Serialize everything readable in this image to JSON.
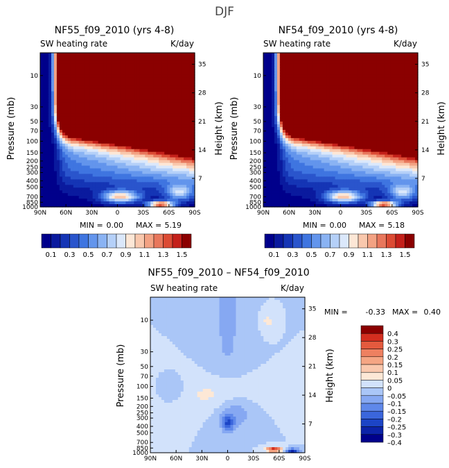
{
  "figure": {
    "title": "DJF"
  },
  "colors": {
    "top_palette": [
      "#00008b",
      "#0a1a9e",
      "#1535b5",
      "#2a55cc",
      "#3f75e0",
      "#6395ec",
      "#8ab3f3",
      "#b5d0f8",
      "#dbe8fb",
      "#fde7d6",
      "#f9c8ad",
      "#f3a283",
      "#e8775c",
      "#dc4b34",
      "#c4201a",
      "#8b0000"
    ],
    "diff_palette": [
      "#00008b",
      "#0c23a8",
      "#1c45c6",
      "#3b66dc",
      "#5f88ea",
      "#86a8f2",
      "#aac6f7",
      "#d2e2fb",
      "#fde8d6",
      "#fac8ad",
      "#f5a583",
      "#ee8060",
      "#e45a3e",
      "#d32e1f",
      "#8b0000"
    ]
  },
  "chart_data": [
    {
      "type": "heatmap",
      "panel": "left",
      "title": "NF55_f09_2010 (yrs 4-8)",
      "left_label": "SW heating rate",
      "right_label": "K/day",
      "ylabel": "Pressure (mb)",
      "ylabel_right": "Height (km)",
      "x_ticks": [
        "90N",
        "60N",
        "30N",
        "0",
        "30S",
        "60S",
        "90S"
      ],
      "p_ticks": [
        "10",
        "30",
        "50",
        "70",
        "100",
        "150",
        "200",
        "250",
        "300",
        "400",
        "500",
        "700",
        "850",
        "1000"
      ],
      "p_tick_values": [
        10,
        30,
        50,
        70,
        100,
        150,
        200,
        250,
        300,
        400,
        500,
        700,
        850,
        1000
      ],
      "h_ticks": [
        "35",
        "28",
        "21",
        "14",
        "7"
      ],
      "h_tick_values": [
        35,
        28,
        21,
        14,
        7
      ],
      "ylim_mb": [
        1000,
        4.5
      ],
      "min_label": "MIN =",
      "min_value": "0.00",
      "max_label": "MAX =",
      "max_value": "5.19",
      "colorbar": {
        "levels": [
          0.1,
          0.2,
          0.3,
          0.4,
          0.5,
          0.6,
          0.7,
          0.8,
          0.9,
          1.0,
          1.1,
          1.2,
          1.3,
          1.4,
          1.5
        ],
        "tick_labels": [
          "0.1",
          "0.3",
          "0.5",
          "0.7",
          "0.9",
          "1.1",
          "1.3",
          "1.5"
        ]
      }
    },
    {
      "type": "heatmap",
      "panel": "right",
      "title": "NF54_f09_2010 (yrs 4-8)",
      "left_label": "SW heating rate",
      "right_label": "K/day",
      "ylabel": "Pressure (mb)",
      "ylabel_right": "Height (km)",
      "x_ticks": [
        "90N",
        "60N",
        "30N",
        "0",
        "30S",
        "60S",
        "90S"
      ],
      "p_ticks": [
        "10",
        "30",
        "50",
        "70",
        "100",
        "150",
        "200",
        "250",
        "300",
        "400",
        "500",
        "700",
        "850",
        "1000"
      ],
      "p_tick_values": [
        10,
        30,
        50,
        70,
        100,
        150,
        200,
        250,
        300,
        400,
        500,
        700,
        850,
        1000
      ],
      "h_ticks": [
        "35",
        "28",
        "21",
        "14",
        "7"
      ],
      "h_tick_values": [
        35,
        28,
        21,
        14,
        7
      ],
      "ylim_mb": [
        1000,
        4.5
      ],
      "min_label": "MIN =",
      "min_value": "0.00",
      "max_label": "MAX =",
      "max_value": "5.18",
      "colorbar": {
        "levels": [
          0.1,
          0.2,
          0.3,
          0.4,
          0.5,
          0.6,
          0.7,
          0.8,
          0.9,
          1.0,
          1.1,
          1.2,
          1.3,
          1.4,
          1.5
        ],
        "tick_labels": [
          "0.1",
          "0.3",
          "0.5",
          "0.7",
          "0.9",
          "1.1",
          "1.3",
          "1.5"
        ]
      }
    },
    {
      "type": "heatmap",
      "panel": "diff",
      "title": "NF55_f09_2010 – NF54_f09_2010",
      "left_label": "SW heating rate",
      "right_label": "K/day",
      "ylabel": "Pressure (mb)",
      "ylabel_right": "Height (km)",
      "x_ticks": [
        "90N",
        "60N",
        "30N",
        "0",
        "30S",
        "60S",
        "90S"
      ],
      "p_ticks": [
        "10",
        "30",
        "50",
        "70",
        "100",
        "150",
        "200",
        "250",
        "300",
        "400",
        "500",
        "700",
        "850",
        "1000"
      ],
      "p_tick_values": [
        10,
        30,
        50,
        70,
        100,
        150,
        200,
        250,
        300,
        400,
        500,
        700,
        850,
        1000
      ],
      "h_ticks": [
        "35",
        "28",
        "21",
        "14",
        "7"
      ],
      "h_tick_values": [
        35,
        28,
        21,
        14,
        7
      ],
      "ylim_mb": [
        1000,
        4.5
      ],
      "min_label": "MIN =",
      "min_value": "-0.33",
      "max_label": "MAX =",
      "max_value": "0.40",
      "colorbar": {
        "levels": [
          -0.4,
          -0.3,
          -0.25,
          -0.2,
          -0.15,
          -0.1,
          -0.05,
          0,
          0.05,
          0.1,
          0.15,
          0.2,
          0.25,
          0.3,
          0.4
        ],
        "tick_labels": [
          "0.4",
          "0.3",
          "0.25",
          "0.2",
          "0.15",
          "0.1",
          "0.05",
          "0",
          "–0.05",
          "–0.1",
          "–0.15",
          "–0.2",
          "–0.25",
          "–0.3",
          "–0.4"
        ]
      }
    }
  ]
}
